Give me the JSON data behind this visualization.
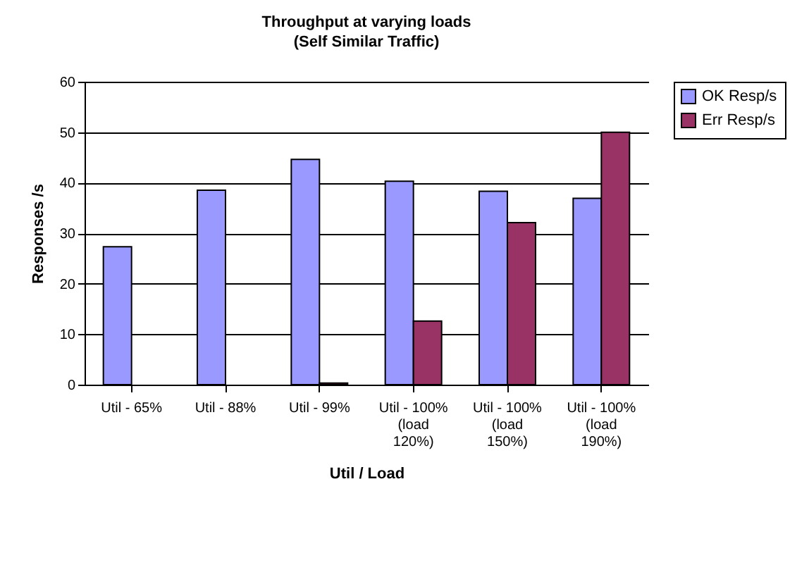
{
  "chart_data": {
    "type": "bar",
    "title": "Throughput at varying loads",
    "subtitle": "(Self Similar Traffic)",
    "xlabel": "Util / Load",
    "ylabel": "Responses /s",
    "categories": [
      "Util - 65%",
      "Util - 88%",
      "Util - 99%",
      "Util - 100%\n(load\n120%)",
      "Util - 100%\n(load\n150%)",
      "Util - 100%\n(load\n190%)"
    ],
    "series": [
      {
        "name": "OK Resp/s",
        "color": "#9999ff",
        "values": [
          27.3,
          38.5,
          44.6,
          40.3,
          38.3,
          36.9
        ]
      },
      {
        "name": "Err Resp/s",
        "color": "#993366",
        "values": [
          null,
          null,
          0.3,
          12.6,
          32.1,
          50.0
        ]
      }
    ],
    "ylim": [
      0,
      60
    ],
    "yticks": [
      0,
      10,
      20,
      30,
      40,
      50,
      60
    ],
    "grid": "y",
    "legend": "right"
  }
}
